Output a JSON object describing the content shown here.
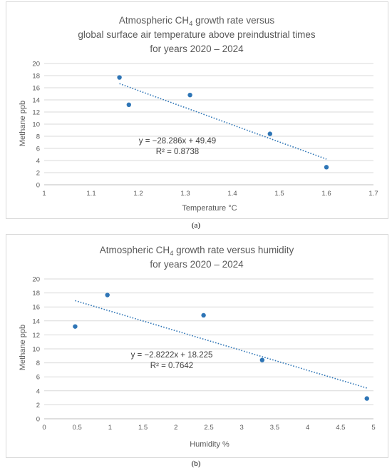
{
  "colors": {
    "point": "#2e75b6",
    "trend": "#2e75b6",
    "grid": "#d9d9d9",
    "text": "#595959"
  },
  "chart_data": [
    {
      "type": "scatter",
      "title_line1_pre": "Atmospheric CH",
      "title_line1_sub": "4",
      "title_line1_post": " growth rate versus",
      "title_line2": "global surface air temperature above preindustrial times",
      "title_line3": "for years 2020 – 2024",
      "xlabel": "Temperature °C",
      "ylabel": "Methane ppb",
      "xlim": [
        1,
        1.7
      ],
      "ylim": [
        0,
        20
      ],
      "xticks": [
        "1",
        "1.1",
        "1.2",
        "1.3",
        "1.4",
        "1.5",
        "1.6",
        "1.7"
      ],
      "yticks": [
        "0",
        "2",
        "4",
        "6",
        "8",
        "10",
        "12",
        "14",
        "16",
        "18",
        "20"
      ],
      "grid": "horizontal",
      "points": [
        {
          "x": 1.16,
          "y": 17.7
        },
        {
          "x": 1.18,
          "y": 13.2
        },
        {
          "x": 1.31,
          "y": 14.8
        },
        {
          "x": 1.48,
          "y": 8.4
        },
        {
          "x": 1.6,
          "y": 2.9
        }
      ],
      "trendline": {
        "type": "linear",
        "slope": -28.286,
        "intercept": 49.49,
        "x_range": [
          1.16,
          1.6
        ]
      },
      "equation": "y = −28.286x + 49.49",
      "r2_label": "R² = 0.8738",
      "caption": "(a)"
    },
    {
      "type": "scatter",
      "title_line1_pre": "Atmospheric CH",
      "title_line1_sub": "4",
      "title_line1_post": " growth rate versus humidity",
      "title_line2": "for years 2020 – 2024",
      "xlabel": "Humidity %",
      "ylabel": "Methane ppb",
      "xlim": [
        0,
        5
      ],
      "ylim": [
        0,
        20
      ],
      "xticks": [
        "0",
        "0.5",
        "1",
        "1.5",
        "2",
        "2.5",
        "3",
        "3.5",
        "4",
        "4.5",
        "5"
      ],
      "yticks": [
        "0",
        "2",
        "4",
        "6",
        "8",
        "10",
        "12",
        "14",
        "16",
        "18",
        "20"
      ],
      "grid": "horizontal",
      "points": [
        {
          "x": 0.47,
          "y": 13.2
        },
        {
          "x": 0.96,
          "y": 17.7
        },
        {
          "x": 2.42,
          "y": 14.8
        },
        {
          "x": 3.31,
          "y": 8.4
        },
        {
          "x": 4.9,
          "y": 2.9
        }
      ],
      "trendline": {
        "type": "linear",
        "slope": -2.8222,
        "intercept": 18.225,
        "x_range": [
          0.47,
          4.9
        ]
      },
      "equation": "y = −2.8222x + 18.225",
      "r2_label": "R² = 0.7642",
      "caption": "(b)"
    }
  ]
}
